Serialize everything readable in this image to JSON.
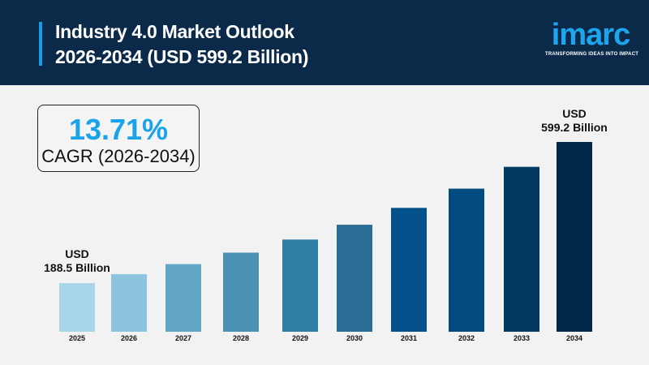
{
  "header": {
    "title_line1": "Industry 4.0 Market Outlook",
    "title_line2": "2026-2034 (USD 599.2 Billion)",
    "logo_text": "imarc",
    "logo_tagline": "TRANSFORMING IDEAS INTO IMPACT"
  },
  "cagr": {
    "value": "13.71%",
    "label": "CAGR (2026-2034)"
  },
  "chart_data": {
    "type": "bar",
    "title": "Industry 4.0 Market Outlook 2026-2034 (USD 599.2 Billion)",
    "categories": [
      "2025",
      "2026",
      "2027",
      "2028",
      "2029",
      "2030",
      "2031",
      "2032",
      "2033",
      "2034"
    ],
    "values": [
      188.5,
      214.3,
      243.7,
      277.1,
      315.1,
      358.3,
      407.4,
      463.3,
      526.8,
      599.2
    ],
    "unit": "USD Billion",
    "colors": [
      "#a8d5e8",
      "#8cc4de",
      "#62a6c6",
      "#4a91b3",
      "#2e7ea3",
      "#2a6d94",
      "#04508a",
      "#034a7e",
      "#033a64",
      "#02294a"
    ],
    "annotations": {
      "first": {
        "line1": "USD",
        "line2": "188.5 Billion"
      },
      "last": {
        "line1": "USD",
        "line2": "599.2 Billion"
      }
    },
    "grid": false,
    "legend": "none"
  }
}
